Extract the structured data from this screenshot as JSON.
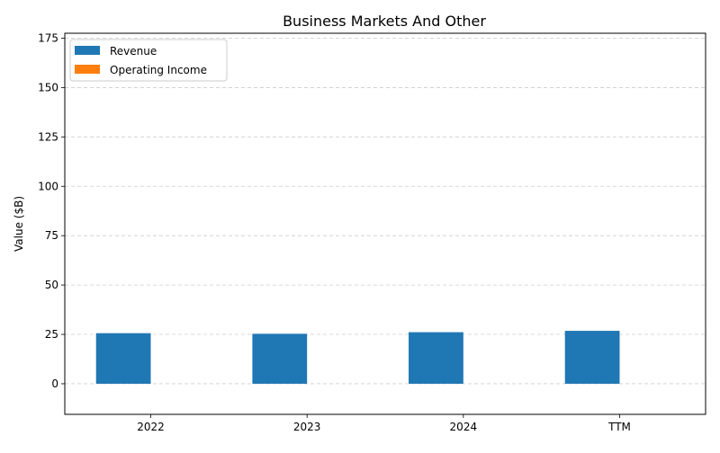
{
  "chart_data": {
    "type": "bar",
    "title": "Business Markets And Other",
    "xlabel": "",
    "ylabel": "Value ($B)",
    "categories": [
      "2022",
      "2023",
      "2024",
      "TTM"
    ],
    "series": [
      {
        "name": "Revenue",
        "color": "#1f77b4",
        "values": [
          25.6,
          25.3,
          26.1,
          26.8
        ]
      },
      {
        "name": "Operating Income",
        "color": "#ff7f0e",
        "values": [
          0.0,
          0.0,
          0.0,
          0.0
        ]
      }
    ],
    "ylim": [
      -15.5,
      177.5
    ],
    "yticks": [
      0,
      25,
      50,
      75,
      100,
      125,
      150,
      175
    ],
    "grid": true,
    "legend_position": "top-left"
  }
}
